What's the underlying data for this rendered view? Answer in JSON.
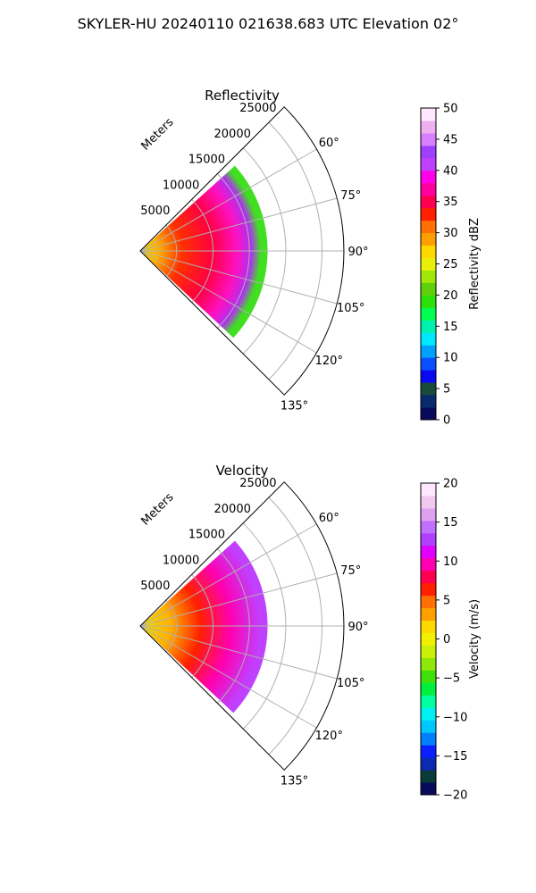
{
  "figure": {
    "suptitle": "SKYLER-HU  20240110  021638.683 UTC Elevation 02°"
  },
  "chart_data": [
    {
      "type": "heatmap",
      "projection": "polar-sector",
      "title": "Reflectivity",
      "radial_label": "Meters",
      "radial_ticks": [
        5000,
        10000,
        15000,
        20000,
        25000
      ],
      "r_max": 28000,
      "azimuth_range_deg": [
        45,
        135
      ],
      "azimuth_ticks": [
        "60°",
        "75°",
        "90°",
        "105°",
        "120°",
        "135°"
      ],
      "grid": true,
      "colorbar": {
        "label": "Reflectivity dBZ",
        "range": [
          0,
          50
        ],
        "ticks": [
          "0",
          "5",
          "10",
          "15",
          "20",
          "25",
          "30",
          "35",
          "40",
          "45",
          "50"
        ],
        "colors": [
          "#0a0a5a",
          "#0a2a6e",
          "#1a4a3a",
          "#0a0af0",
          "#0a50ff",
          "#00a0ff",
          "#00e8ff",
          "#00f0b0",
          "#00ff50",
          "#2ee00a",
          "#60d00a",
          "#a0e80a",
          "#e8f00a",
          "#ffd800",
          "#ffa000",
          "#ff7000",
          "#ff2000",
          "#ff0050",
          "#ff00a0",
          "#ff00e8",
          "#c040ff",
          "#a040ff",
          "#d880ff",
          "#f0b0f0",
          "#ffe8ff"
        ]
      },
      "data_extent": {
        "azimuth_deg": [
          45,
          133
        ],
        "range_m": [
          0,
          17500
        ]
      }
    },
    {
      "type": "heatmap",
      "projection": "polar-sector",
      "title": "Velocity",
      "radial_label": "Meters",
      "radial_ticks": [
        5000,
        10000,
        15000,
        20000,
        25000
      ],
      "r_max": 28000,
      "azimuth_range_deg": [
        45,
        135
      ],
      "azimuth_ticks": [
        "60°",
        "75°",
        "90°",
        "105°",
        "120°",
        "135°"
      ],
      "grid": true,
      "colorbar": {
        "label": "Velocity (m/s)",
        "range": [
          -20,
          20
        ],
        "ticks": [
          "−20",
          "−15",
          "−10",
          "−5",
          "0",
          "5",
          "10",
          "15",
          "20"
        ],
        "colors": [
          "#0a0a5a",
          "#0a3a3a",
          "#0a2ab0",
          "#0a20ff",
          "#0080ff",
          "#00c8ff",
          "#00f0f0",
          "#00ffa0",
          "#00f040",
          "#40e00a",
          "#90e80a",
          "#c8f00a",
          "#f0f000",
          "#ffd800",
          "#ffa000",
          "#ff7000",
          "#ff2000",
          "#ff0050",
          "#ff00b0",
          "#e000ff",
          "#b040ff",
          "#c070ff",
          "#e0a0f0",
          "#f0c8f0",
          "#ffe8ff"
        ]
      },
      "data_extent": {
        "azimuth_deg": [
          45,
          133
        ],
        "range_m": [
          0,
          17500
        ]
      }
    }
  ]
}
